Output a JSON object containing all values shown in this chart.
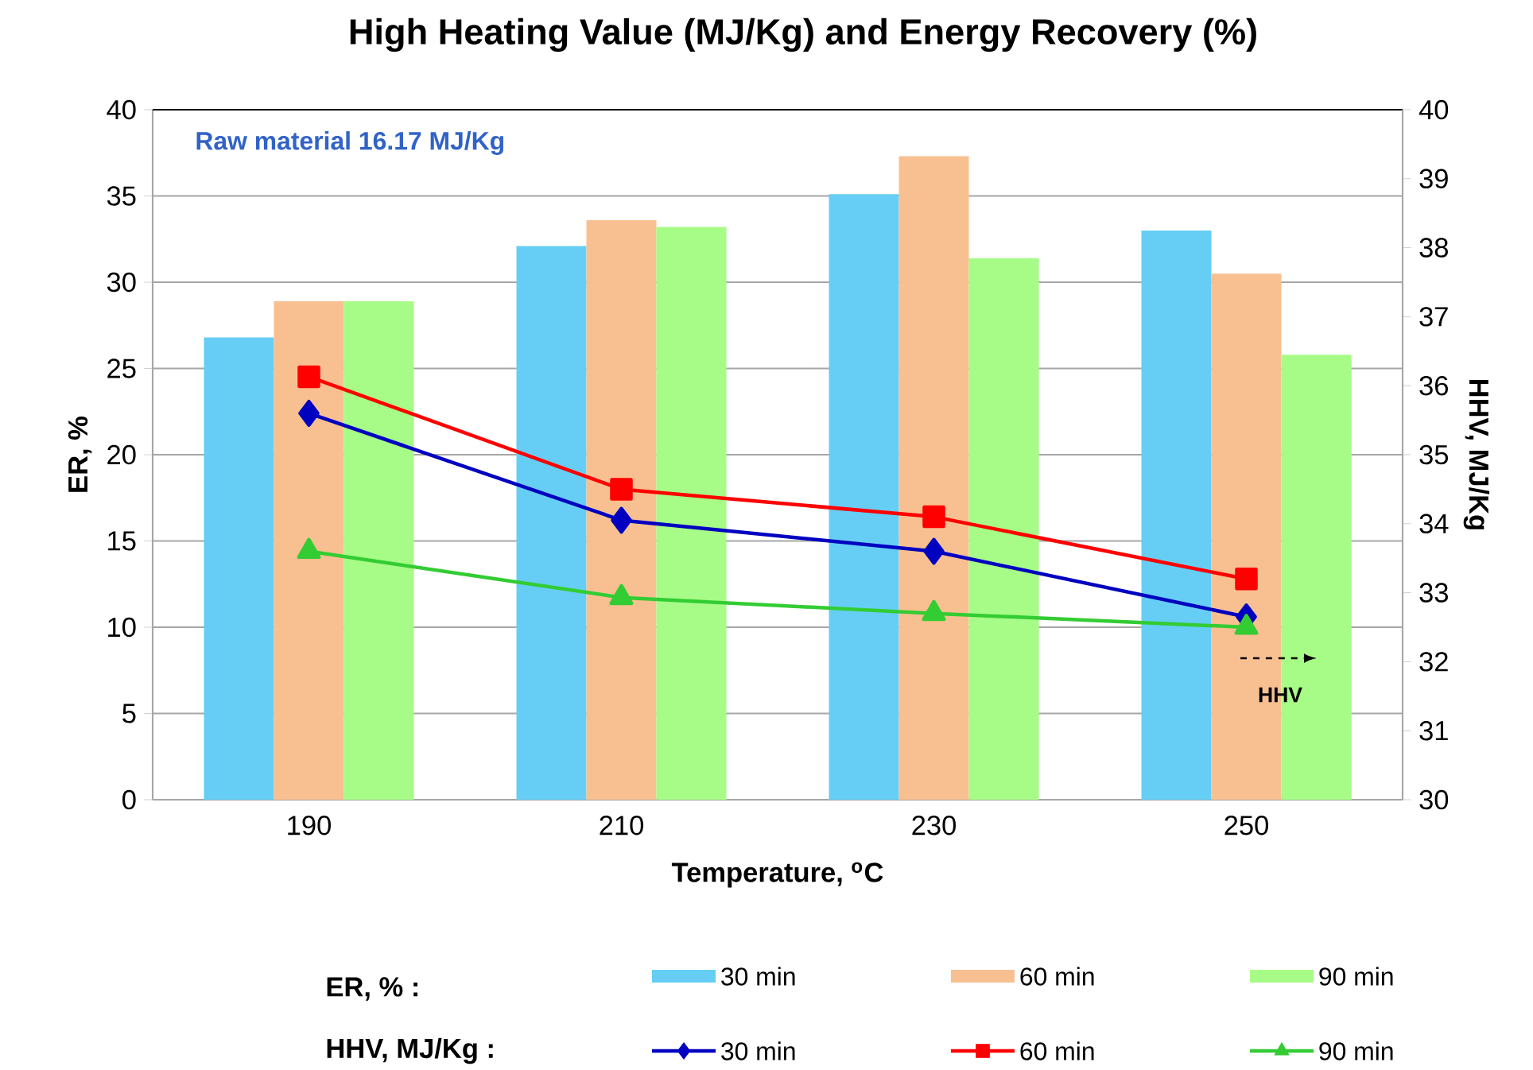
{
  "chart_data": {
    "type": "bar",
    "title": "High Heating Value (MJ/Kg) and Energy Recovery (%)",
    "xlabel": "Temperature, $^{o}$C",
    "ylabel": "ER, %",
    "y2label": "HHV, MJ/Kg",
    "categories": [
      "190",
      "210",
      "230",
      "250"
    ],
    "series": [
      {
        "name": "30 min",
        "color": "#66cef5",
        "values": [
          26.8,
          32.1,
          35.1,
          33.0
        ]
      },
      {
        "name": "60 min",
        "color": "#f8c091",
        "values": [
          28.9,
          33.6,
          37.3,
          30.5
        ]
      },
      {
        "name": "90 min",
        "color": "#a6fc86",
        "values": [
          28.9,
          33.2,
          31.4,
          25.8
        ]
      },
      {
        "name": "30 min",
        "type": "line",
        "axis": "y2",
        "marker": "diamond",
        "line_style": "solid",
        "color": "#0000c0",
        "values": [
          35.6,
          34.05,
          33.6,
          32.65
        ]
      },
      {
        "name": "60 min",
        "type": "line",
        "axis": "y2",
        "marker": "square",
        "line_style": "solid",
        "color": "#ff0000",
        "values": [
          36.13,
          34.5,
          34.1,
          33.2
        ]
      },
      {
        "name": "90 min",
        "type": "line",
        "axis": "y2",
        "marker": "triangle",
        "line_style": "solid",
        "color": "#33cc33",
        "values": [
          33.6,
          32.93,
          32.7,
          32.5
        ]
      }
    ],
    "ylim": [
      0,
      40
    ],
    "yticks": [
      0,
      5,
      10,
      15,
      20,
      25,
      30,
      35,
      40
    ],
    "y2lim": [
      30,
      40
    ],
    "y2ticks": [
      30,
      31,
      32,
      33,
      34,
      35,
      36,
      37,
      38,
      39,
      40
    ],
    "grid": "y",
    "legend": "bottom",
    "annotations": [
      "Raw material 16.17 MJ/Kg",
      "HHV",
      "ER, % :",
      "HHV, MJ/Kg :"
    ]
  }
}
